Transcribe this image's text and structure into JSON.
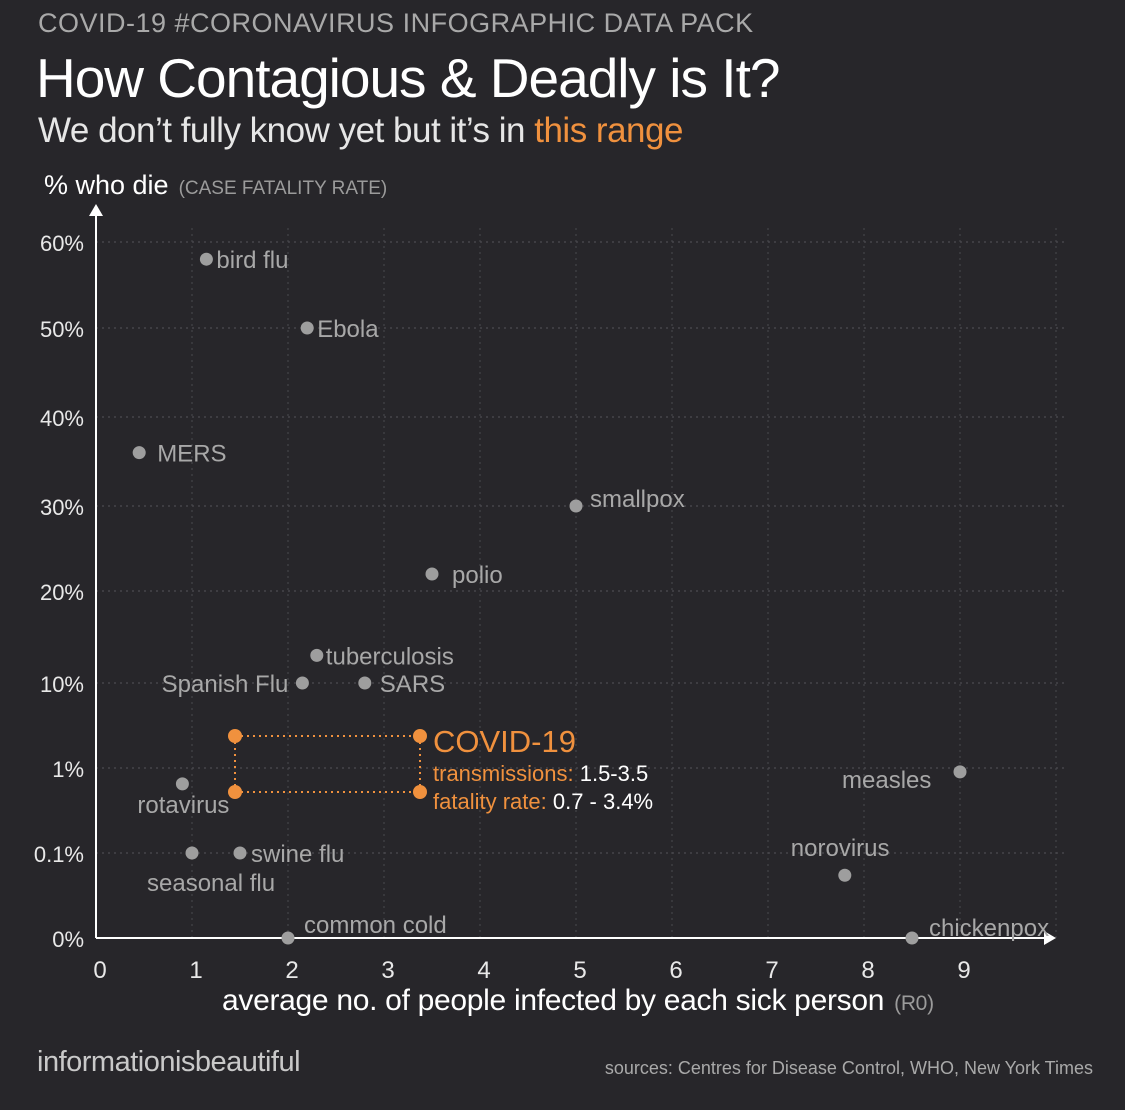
{
  "header": {
    "kicker": "COVID-19 #CORONAVIRUS INFOGRAPHIC DATA PACK",
    "title": "How Contagious  & Deadly is It?",
    "subtitle_pre": "We don’t fully know yet but it’s in ",
    "subtitle_highlight": "this range"
  },
  "colors": {
    "background": "#27262a",
    "accent": "#f0913e",
    "point": "#9e9e9e",
    "label": "#a8a8a8",
    "axis": "#ffffff"
  },
  "chart_data": {
    "type": "scatter",
    "title": "How Contagious  & Deadly is It?",
    "ylabel": "% who die",
    "ylabel_note": "(CASE FATALITY RATE)",
    "xlabel": "average no. of people infected by each sick person",
    "xlabel_note": "(R0)",
    "x_range": [
      0,
      9.8
    ],
    "x_ticks": [
      "0",
      "1",
      "2",
      "3",
      "4",
      "5",
      "6",
      "7",
      "8",
      "9"
    ],
    "y_ticks": [
      "0%",
      "0.1%",
      "1%",
      "10%",
      "20%",
      "30%",
      "40%",
      "50%",
      "60%"
    ],
    "y_scale_note": "piecewise: 0% to 0.1% to 1% to 10% logarithmic steps, then linear 10%-60%",
    "grid": true,
    "points": [
      {
        "label": "bird flu",
        "x": 1.15,
        "y": 58
      },
      {
        "label": "Ebola",
        "x": 2.2,
        "y": 50
      },
      {
        "label": "MERS",
        "x": 0.45,
        "y": 36
      },
      {
        "label": "smallpox",
        "x": 5.0,
        "y": 30
      },
      {
        "label": "polio",
        "x": 3.5,
        "y": 22
      },
      {
        "label": "tuberculosis",
        "x": 2.3,
        "y": 13
      },
      {
        "label": "Spanish Flu",
        "x": 2.15,
        "y": 10
      },
      {
        "label": "SARS",
        "x": 2.8,
        "y": 10
      },
      {
        "label": "rotavirus",
        "x": 0.9,
        "y": 0.65
      },
      {
        "label": "measles",
        "x": 9.0,
        "y": 0.9
      },
      {
        "label": "seasonal flu",
        "x": 1.0,
        "y": 0.1
      },
      {
        "label": "swine flu",
        "x": 1.5,
        "y": 0.1
      },
      {
        "label": "norovirus",
        "x": 7.8,
        "y": 0.03
      },
      {
        "label": "chickenpox",
        "x": 8.5,
        "y": 0.001
      },
      {
        "label": "common cold",
        "x": 2.0,
        "y": 0
      }
    ],
    "highlight": {
      "label": "COVID-19",
      "transmissions_label": "transmissions:",
      "transmissions_value": "1.5-3.5",
      "fatality_label": "fatality rate:",
      "fatality_value": "0.7 - 3.4%",
      "x_min": 1.5,
      "x_max": 3.5,
      "y_min": 0.7,
      "y_max": 3.4
    }
  },
  "footer": {
    "brand": "informationisbeautiful",
    "sources": "sources: Centres for Disease Control, WHO, New York Times"
  }
}
